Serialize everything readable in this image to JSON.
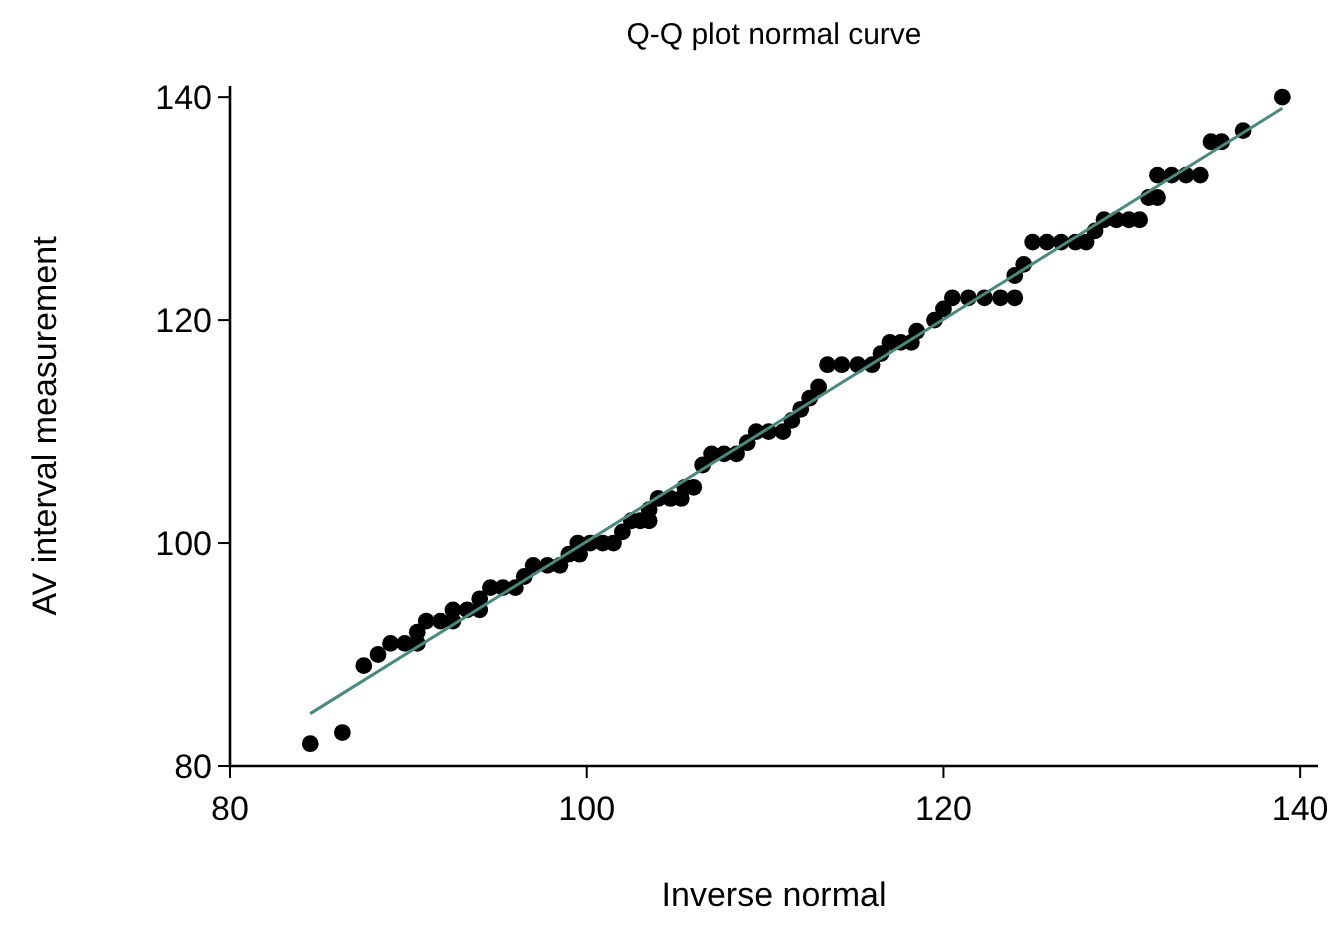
{
  "chart_data": {
    "type": "scatter",
    "title": "Q-Q plot normal curve",
    "xlabel": "Inverse normal",
    "ylabel": "AV interval measurement",
    "xlim": [
      80,
      141
    ],
    "ylim": [
      80,
      141
    ],
    "xticks": [
      80,
      100,
      120,
      140
    ],
    "yticks": [
      80,
      100,
      120,
      140
    ],
    "grid": false,
    "marker": "circle",
    "series": [
      {
        "color": "#000000",
        "x": [
          84.5,
          86.3,
          87.5,
          88.3,
          89,
          89.8,
          90.5,
          90.5,
          91,
          91.8,
          92.5,
          92.5,
          93.3,
          94,
          94,
          94.6,
          95.3,
          96,
          96.5,
          97,
          97.8,
          98.5,
          99,
          99.6,
          99.5,
          100.2,
          100.9,
          101.5,
          102,
          102.5,
          103,
          103.5,
          103.5,
          104,
          104.7,
          105.3,
          105.5,
          106,
          106.5,
          107,
          107.7,
          108.4,
          109,
          109.5,
          110.2,
          111,
          111.5,
          112,
          112.5,
          113,
          113.5,
          114.3,
          115.2,
          116,
          116.5,
          117,
          117.6,
          118.2,
          118.5,
          119.5,
          120,
          120.5,
          121.4,
          122.3,
          123.2,
          124,
          124,
          124.5,
          125,
          125.8,
          126.6,
          127.4,
          128,
          128.5,
          129,
          129.7,
          130.4,
          131,
          131.5,
          132,
          132,
          132.8,
          133.6,
          134.4,
          135,
          135.6,
          136.8,
          139
        ],
        "values": [
          82,
          83,
          89,
          90,
          91,
          91,
          91,
          92,
          93,
          93,
          93,
          94,
          94,
          94,
          95,
          96,
          96,
          96,
          97,
          98,
          98,
          98,
          99,
          99,
          100,
          100,
          100,
          100,
          101,
          102,
          102,
          102,
          103,
          104,
          104,
          104,
          105,
          105,
          107,
          108,
          108,
          108,
          109,
          110,
          110,
          110,
          111,
          112,
          113,
          114,
          116,
          116,
          116,
          116,
          117,
          118,
          118,
          118,
          119,
          120,
          121,
          122,
          122,
          122,
          122,
          122,
          124,
          125,
          127,
          127,
          127,
          127,
          127,
          128,
          129,
          129,
          129,
          129,
          131,
          131,
          133,
          133,
          133,
          133,
          136,
          136,
          137,
          140
        ]
      },
      {
        "type": "line",
        "color": "#4a8a7c",
        "marker": "none",
        "x": [
          84.5,
          139
        ],
        "values": [
          84.7,
          139
        ]
      }
    ]
  }
}
